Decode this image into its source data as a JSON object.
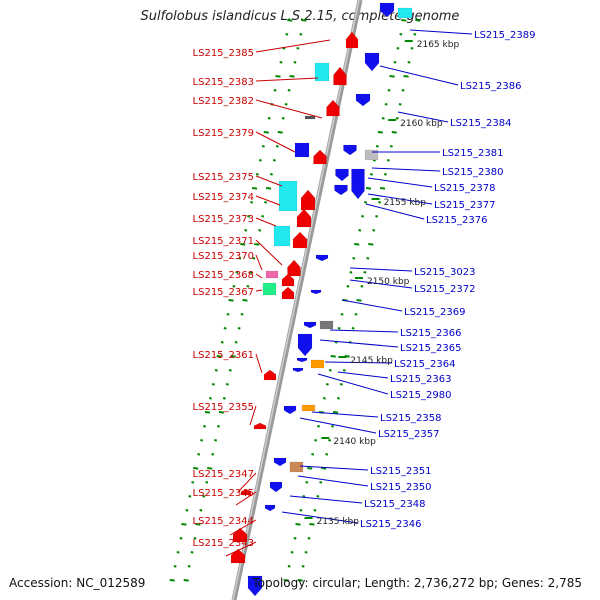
{
  "title": "Sulfolobus islandicus L.S.2.15, complete genome",
  "footer": {
    "accession": "Accession: NC_012589",
    "info": "Topology: circular; Length: 2,736,272 bp; Genes: 2,785"
  },
  "colors": {
    "label_left": "#cc0000",
    "label_right": "#0000cc",
    "backbone": "#9a9a9a",
    "tick": "#008800"
  },
  "kbp_labels": [
    "2165 kbp",
    "2160 kbp",
    "2155 kbp",
    "2150 kbp",
    "2145 kbp",
    "2140 kbp",
    "2135 kbp"
  ],
  "left_labels": [
    "LS215_2385",
    "LS215_2383",
    "LS215_2382",
    "LS215_2379",
    "LS215_2375",
    "LS215_2374",
    "LS215_2373",
    "LS215_2371",
    "LS215_2370",
    "LS215_2368",
    "LS215_2367",
    "LS215_2361",
    "LS215_2355",
    "LS215_2347",
    "LS215_2345",
    "LS215_2344",
    "LS215_2343"
  ],
  "right_labels": [
    "LS215_2389",
    "LS215_2386",
    "LS215_2384",
    "LS215_2381",
    "LS215_2380",
    "LS215_2378",
    "LS215_2377",
    "LS215_2376",
    "LS215_3023",
    "LS215_2372",
    "LS215_2369",
    "LS215_2366",
    "LS215_2365",
    "LS215_2364",
    "LS215_2363",
    "LS215_2980",
    "LS215_2358",
    "LS215_2357",
    "LS215_2351",
    "LS215_2350",
    "LS215_2348",
    "LS215_2346"
  ]
}
